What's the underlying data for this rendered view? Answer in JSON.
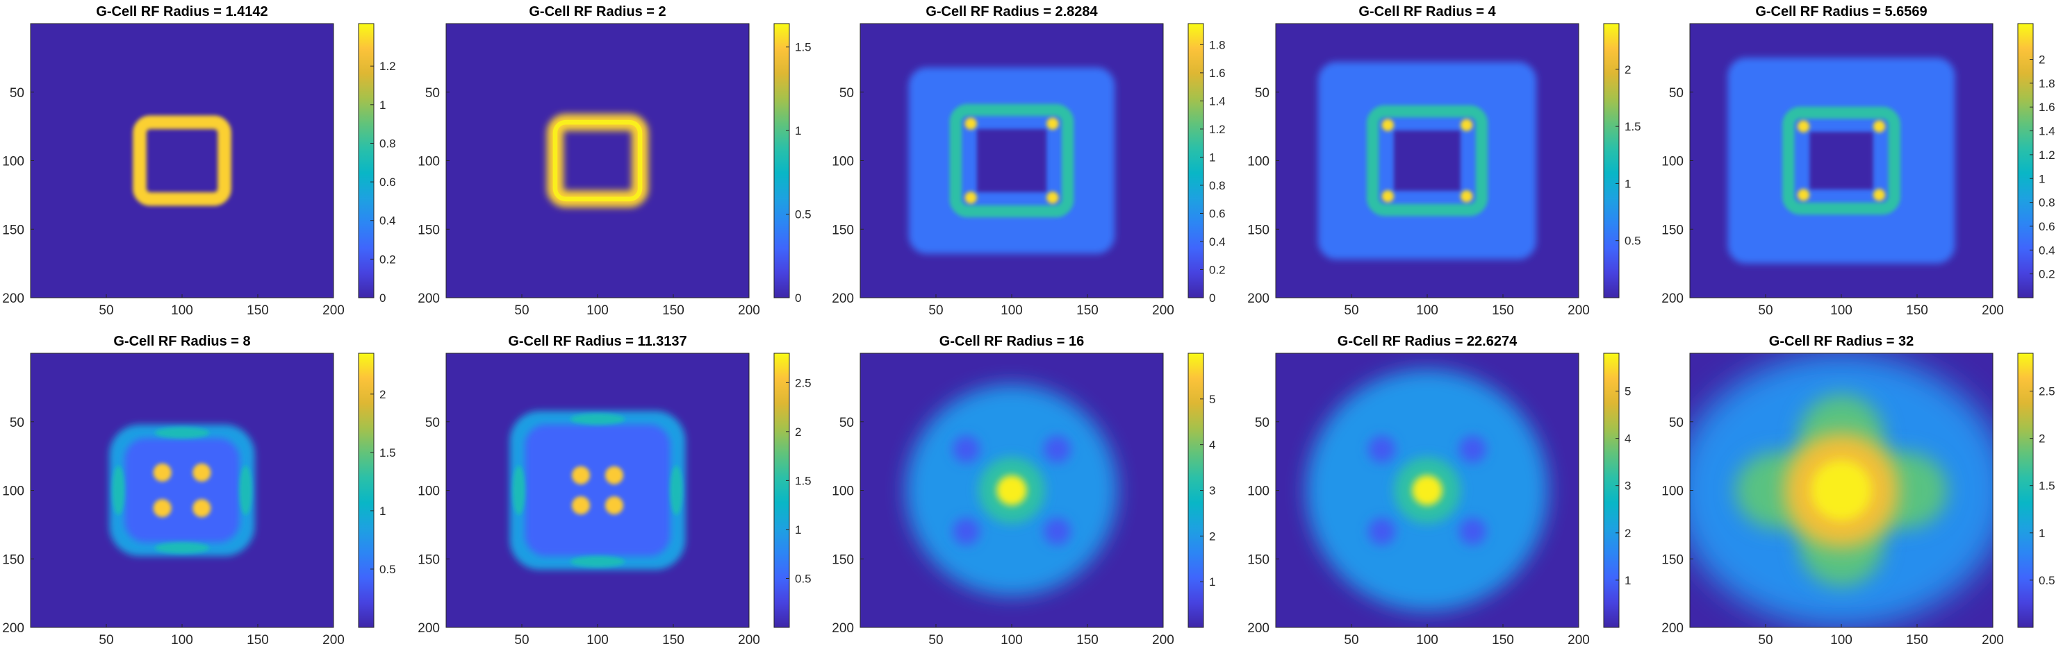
{
  "colormap": "parula",
  "axis_ticks": [
    "50",
    "100",
    "150",
    "200"
  ],
  "chart_data": [
    {
      "type": "heatmap",
      "title": "G-Cell RF Radius = 1.4142",
      "radius": 1.4142,
      "xlim": [
        0,
        200
      ],
      "ylim": [
        0,
        200
      ],
      "colorbar": {
        "min": 0,
        "max": 1.42,
        "ticks": [
          "0",
          "0.2",
          "0.4",
          "0.6",
          "0.8",
          "1",
          "1.2"
        ],
        "tick_values": [
          0,
          0.2,
          0.4,
          0.6,
          0.8,
          1,
          1.2
        ]
      }
    },
    {
      "type": "heatmap",
      "title": "G-Cell RF Radius = 2",
      "radius": 2,
      "xlim": [
        0,
        200
      ],
      "ylim": [
        0,
        200
      ],
      "colorbar": {
        "min": 0,
        "max": 1.64,
        "ticks": [
          "0",
          "0.5",
          "1",
          "1.5"
        ],
        "tick_values": [
          0,
          0.5,
          1,
          1.5
        ]
      }
    },
    {
      "type": "heatmap",
      "title": "G-Cell RF Radius = 2.8284",
      "radius": 2.8284,
      "xlim": [
        0,
        200
      ],
      "ylim": [
        0,
        200
      ],
      "colorbar": {
        "min": 0,
        "max": 1.95,
        "ticks": [
          "0",
          "0.2",
          "0.4",
          "0.6",
          "0.8",
          "1",
          "1.2",
          "1.4",
          "1.6",
          "1.8"
        ],
        "tick_values": [
          0,
          0.2,
          0.4,
          0.6,
          0.8,
          1,
          1.2,
          1.4,
          1.6,
          1.8
        ]
      }
    },
    {
      "type": "heatmap",
      "title": "G-Cell RF Radius = 4",
      "radius": 4,
      "xlim": [
        0,
        200
      ],
      "ylim": [
        0,
        200
      ],
      "colorbar": {
        "min": 0,
        "max": 2.4,
        "ticks": [
          "0.5",
          "1",
          "1.5",
          "2"
        ],
        "tick_values": [
          0.5,
          1,
          1.5,
          2
        ]
      }
    },
    {
      "type": "heatmap",
      "title": "G-Cell RF Radius = 5.6569",
      "radius": 5.6569,
      "xlim": [
        0,
        200
      ],
      "ylim": [
        0,
        200
      ],
      "colorbar": {
        "min": 0,
        "max": 2.3,
        "ticks": [
          "0.2",
          "0.4",
          "0.6",
          "0.8",
          "1",
          "1.2",
          "1.4",
          "1.6",
          "1.8",
          "2"
        ],
        "tick_values": [
          0.2,
          0.4,
          0.6,
          0.8,
          1,
          1.2,
          1.4,
          1.6,
          1.8,
          2
        ]
      }
    },
    {
      "type": "heatmap",
      "title": "G-Cell RF Radius = 8",
      "radius": 8,
      "xlim": [
        0,
        200
      ],
      "ylim": [
        0,
        200
      ],
      "colorbar": {
        "min": 0,
        "max": 2.35,
        "ticks": [
          "0.5",
          "1",
          "1.5",
          "2"
        ],
        "tick_values": [
          0.5,
          1,
          1.5,
          2
        ]
      }
    },
    {
      "type": "heatmap",
      "title": "G-Cell RF Radius = 11.3137",
      "radius": 11.3137,
      "xlim": [
        0,
        200
      ],
      "ylim": [
        0,
        200
      ],
      "colorbar": {
        "min": 0,
        "max": 2.8,
        "ticks": [
          "0.5",
          "1",
          "1.5",
          "2",
          "2.5"
        ],
        "tick_values": [
          0.5,
          1,
          1.5,
          2,
          2.5
        ]
      }
    },
    {
      "type": "heatmap",
      "title": "G-Cell RF Radius = 16",
      "radius": 16,
      "xlim": [
        0,
        200
      ],
      "ylim": [
        0,
        200
      ],
      "colorbar": {
        "min": 0,
        "max": 6,
        "ticks": [
          "1",
          "2",
          "3",
          "4",
          "5"
        ],
        "tick_values": [
          1,
          2,
          3,
          4,
          5
        ]
      }
    },
    {
      "type": "heatmap",
      "title": "G-Cell RF Radius = 22.6274",
      "radius": 22.6274,
      "xlim": [
        0,
        200
      ],
      "ylim": [
        0,
        200
      ],
      "colorbar": {
        "min": 0,
        "max": 5.8,
        "ticks": [
          "1",
          "2",
          "3",
          "4",
          "5"
        ],
        "tick_values": [
          1,
          2,
          3,
          4,
          5
        ]
      }
    },
    {
      "type": "heatmap",
      "title": "G-Cell RF Radius = 32",
      "radius": 32,
      "xlim": [
        0,
        200
      ],
      "ylim": [
        0,
        200
      ],
      "colorbar": {
        "min": 0,
        "max": 2.9,
        "ticks": [
          "0.5",
          "1",
          "1.5",
          "2",
          "2.5"
        ],
        "tick_values": [
          0.5,
          1,
          1.5,
          2,
          2.5
        ]
      }
    }
  ]
}
